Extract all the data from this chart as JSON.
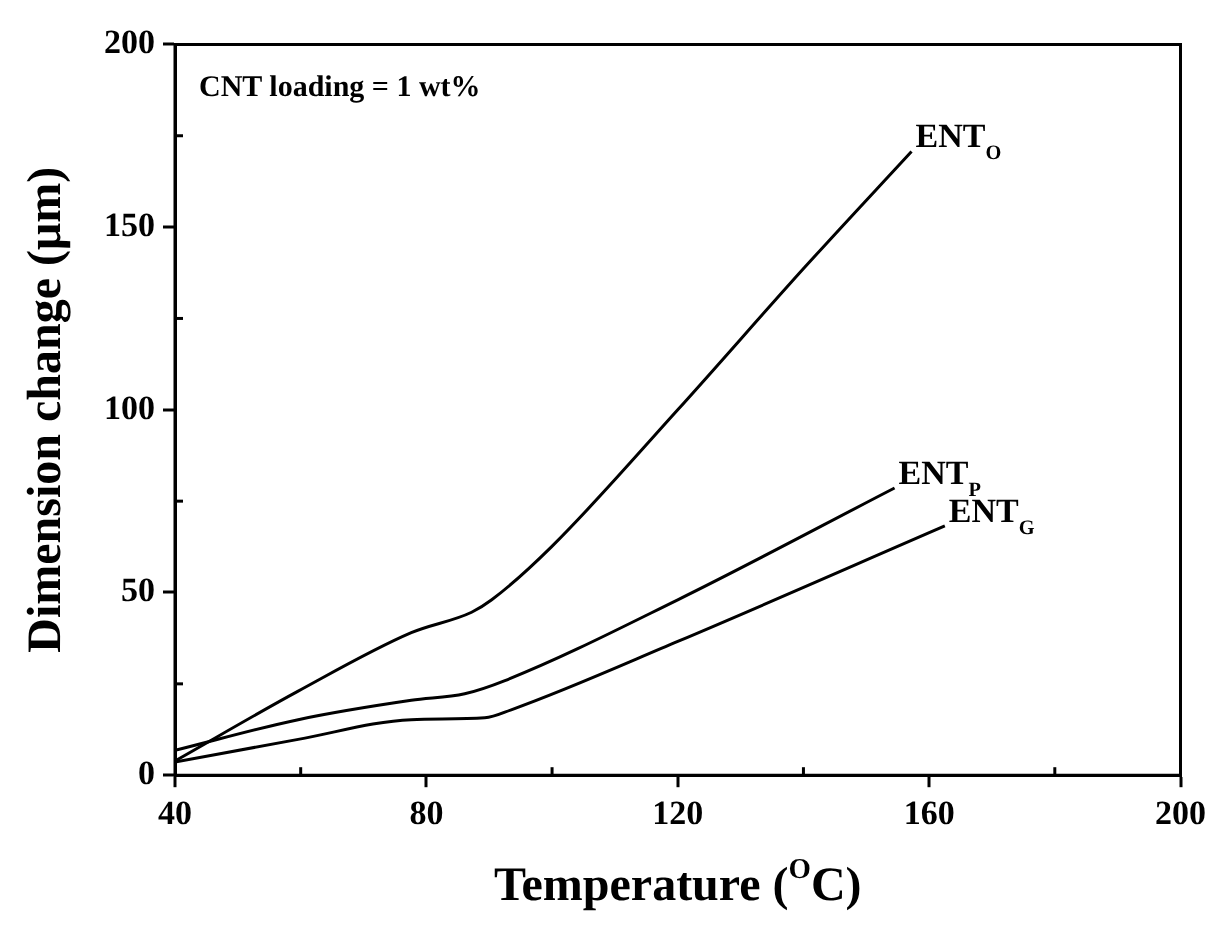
{
  "chart_data": {
    "type": "line",
    "xlabel": "Temperature ($^{O}$C)",
    "ylabel": "Dimension change (μm)",
    "annotations": [
      "CNT loading = 1 wt%"
    ],
    "xlim": [
      40,
      200
    ],
    "xticks": [
      40,
      80,
      120,
      160,
      200
    ],
    "ylim": [
      0,
      200
    ],
    "yticks": [
      0,
      50,
      100,
      150,
      200
    ],
    "grid": false,
    "legend": false,
    "marker": "none",
    "line_style": "solid",
    "series": [
      {
        "name": "ENT$_{O}$",
        "color": "#000000",
        "x": [
          40,
          59.6,
          77.6,
          87.2,
          90.4,
          99.9,
          120,
          140.2,
          157.2
        ],
        "values": [
          3.9,
          23,
          39,
          44.6,
          48,
          62.5,
          100,
          139,
          170.7
        ]
      },
      {
        "name": "ENT$_{P}$",
        "color": "#000000",
        "x": [
          40,
          59.6,
          77.6,
          86.1,
          92.5,
          120,
          154.5
        ],
        "values": [
          6.8,
          15.2,
          20.5,
          22.3,
          25.9,
          48,
          78.6
        ]
      },
      {
        "name": "ENT$_{G}$",
        "color": "#000000",
        "x": [
          40,
          59.6,
          77.6,
          89.3,
          93.5,
          120,
          162.5
        ],
        "values": [
          3.6,
          9.8,
          15.2,
          15.7,
          17.9,
          36.6,
          68.2
        ]
      }
    ]
  }
}
